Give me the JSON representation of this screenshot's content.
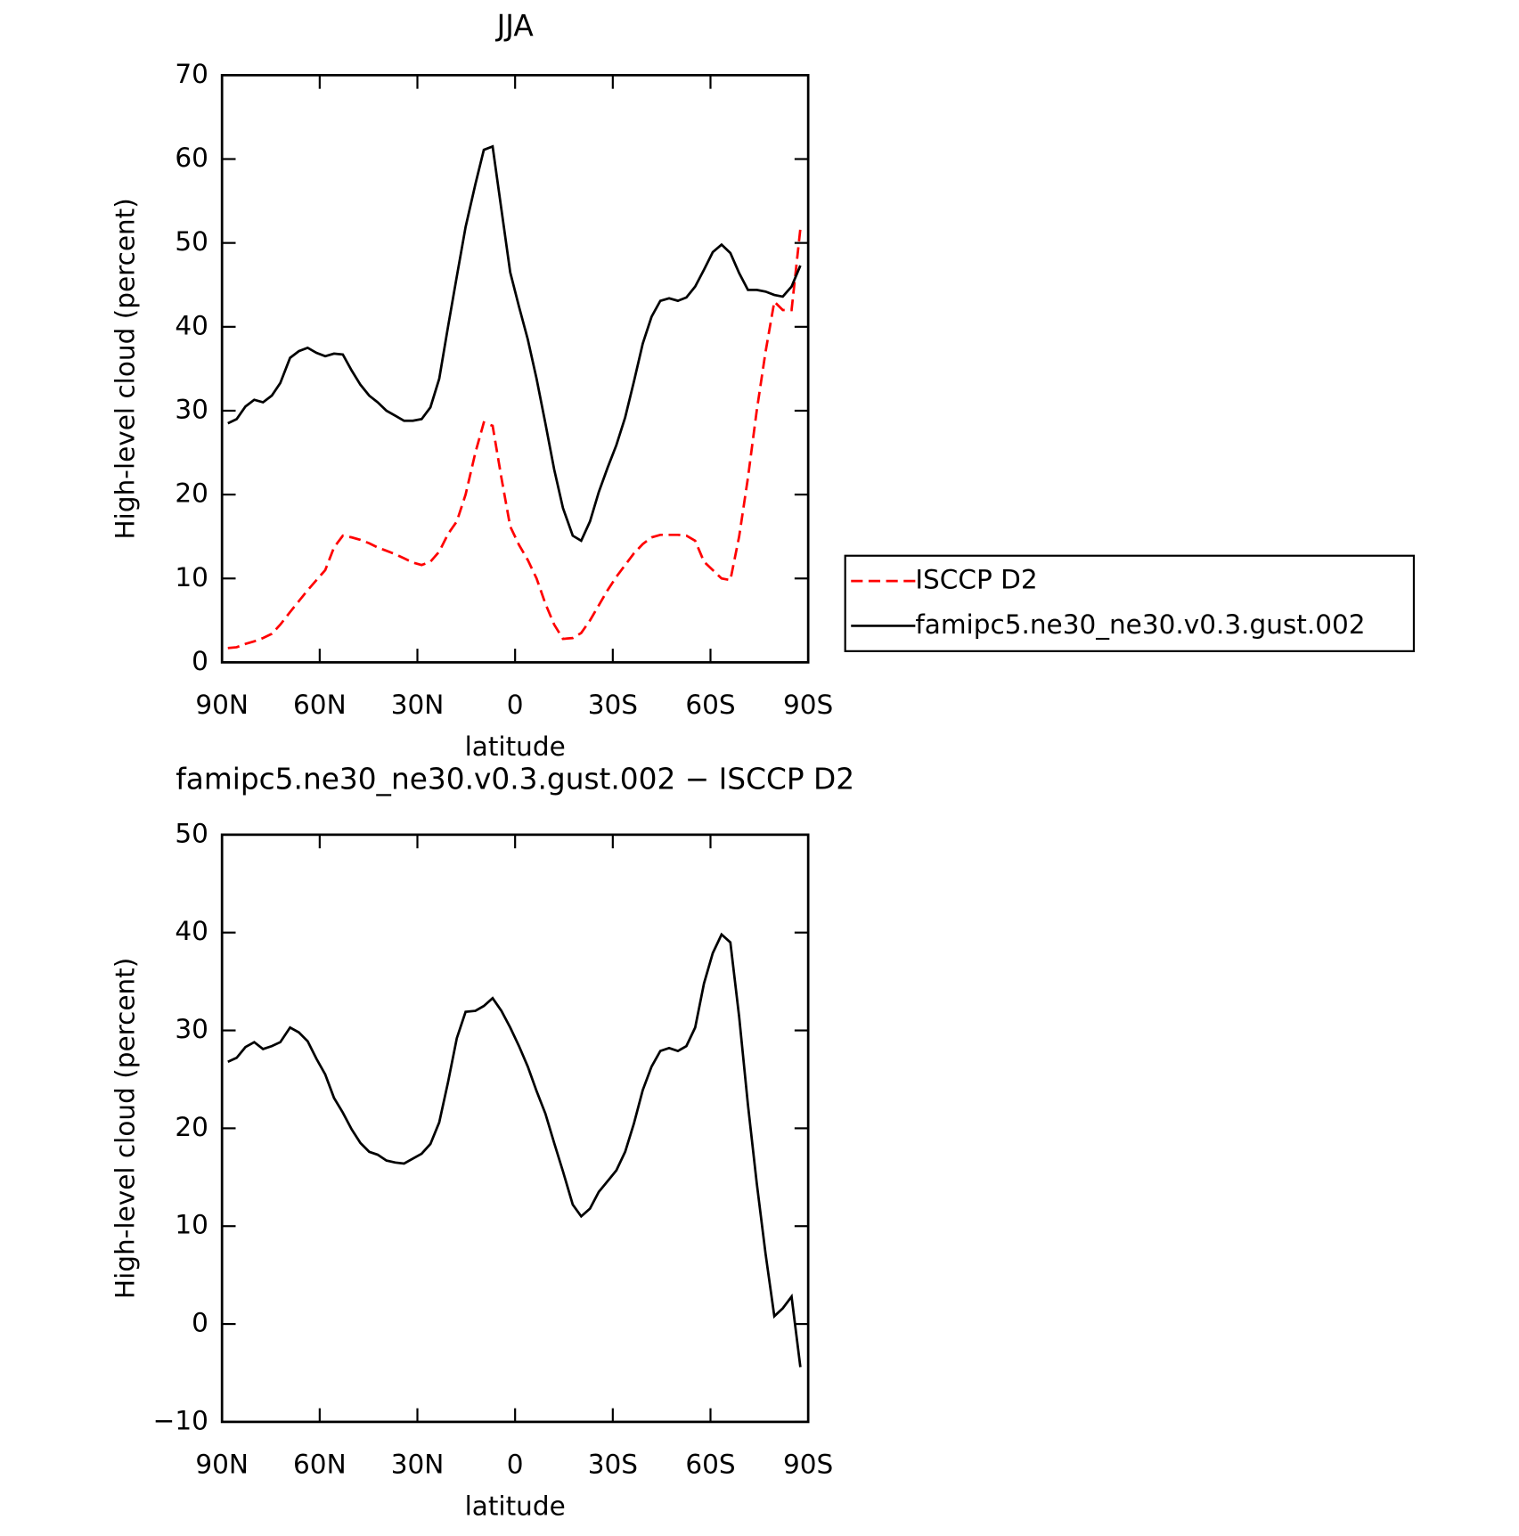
{
  "chart_data": [
    {
      "type": "line",
      "title": "JJA",
      "xlabel": "latitude",
      "ylabel": "High-level cloud (percent)",
      "x": [
        88.2,
        85.5,
        82.8,
        80.1,
        77.4,
        74.7,
        72.1,
        69.1,
        66.4,
        63.7,
        61.0,
        58.3,
        55.6,
        52.9,
        50.2,
        47.5,
        44.8,
        42.2,
        39.5,
        36.8,
        34.1,
        31.4,
        28.7,
        26.0,
        23.3,
        20.6,
        17.9,
        15.2,
        12.2,
        9.6,
        6.9,
        4.2,
        1.5,
        -1.2,
        -3.9,
        -6.6,
        -9.3,
        -12.0,
        -14.7,
        -17.7,
        -20.3,
        -23.0,
        -25.7,
        -28.4,
        -31.1,
        -33.8,
        -36.5,
        -39.2,
        -41.9,
        -44.6,
        -47.3,
        -50.0,
        -52.6,
        -55.3,
        -58.0,
        -60.7,
        -63.4,
        -66.1,
        -68.8,
        -71.5,
        -74.2,
        -76.9,
        -79.6,
        -82.2,
        -84.9,
        -87.6
      ],
      "series": [
        {
          "name": "ISCCP D2",
          "color": "#ff0000",
          "linestyle": "dashed",
          "values": [
            1.7,
            1.8,
            2.2,
            2.5,
            2.9,
            3.4,
            4.5,
            6,
            7.3,
            8.6,
            9.8,
            11,
            13.7,
            15.1,
            14.9,
            14.6,
            14.2,
            13.7,
            13.3,
            12.9,
            12.4,
            11.9,
            11.6,
            12,
            13.2,
            15.3,
            16.8,
            20,
            25,
            28.6,
            28.2,
            22,
            16.2,
            14,
            12.2,
            10,
            7,
            4.5,
            2.8,
            2.9,
            3.5,
            5,
            6.8,
            8.6,
            10.2,
            11.6,
            13,
            14.1,
            14.9,
            15.2,
            15.2,
            15.2,
            15.1,
            14.5,
            12,
            11,
            10,
            9.8,
            15,
            22,
            30,
            37,
            43,
            42,
            42,
            51.7
          ]
        },
        {
          "name": "famipc5.ne30_ne30.v0.3.gust.002",
          "color": "#000000",
          "linestyle": "solid",
          "values": [
            28.5,
            29,
            30.5,
            31.3,
            31,
            31.8,
            33.3,
            36.3,
            37.1,
            37.5,
            36.9,
            36.5,
            36.8,
            36.7,
            34.8,
            33.1,
            31.8,
            31.0,
            30.0,
            29.4,
            28.8,
            28.8,
            29.0,
            30.4,
            33.8,
            40,
            46,
            51.9,
            57,
            61.1,
            61.5,
            54,
            46.5,
            42.4,
            38.5,
            33.8,
            28.5,
            23,
            18.4,
            15.1,
            14.5,
            16.8,
            20.3,
            23.2,
            25.9,
            29.2,
            33.5,
            38,
            41.2,
            43.1,
            43.4,
            43.1,
            43.5,
            44.8,
            46.8,
            48.9,
            49.8,
            48.8,
            46.4,
            44.4,
            44.4,
            44.2,
            43.8,
            43.6,
            44.8,
            47.3
          ]
        }
      ],
      "xlim": [
        90,
        -90
      ],
      "ylim": [
        0,
        70
      ],
      "xticks": [
        {
          "value": 90,
          "label": "90N"
        },
        {
          "value": 60,
          "label": "60N"
        },
        {
          "value": 30,
          "label": "30N"
        },
        0,
        {
          "value": -30,
          "label": "30S"
        },
        {
          "value": -60,
          "label": "60S"
        },
        {
          "value": -90,
          "label": "90S"
        }
      ],
      "yticks": [
        0,
        10,
        20,
        30,
        40,
        50,
        60,
        70
      ],
      "legend": "right"
    },
    {
      "type": "line",
      "title": "famipc5.ne30_ne30.v0.3.gust.002 − ISCCP D2",
      "xlabel": "latitude",
      "ylabel": "High-level cloud (percent)",
      "x": [
        88.2,
        85.5,
        82.8,
        80.1,
        77.4,
        74.7,
        72.1,
        69.1,
        66.4,
        63.7,
        61.0,
        58.3,
        55.6,
        52.9,
        50.2,
        47.5,
        44.8,
        42.2,
        39.5,
        36.8,
        34.1,
        31.4,
        28.7,
        26.0,
        23.3,
        20.6,
        17.9,
        15.2,
        12.2,
        9.6,
        6.9,
        4.2,
        1.5,
        -1.2,
        -3.9,
        -6.6,
        -9.3,
        -12.0,
        -14.7,
        -17.7,
        -20.3,
        -23.0,
        -25.7,
        -28.4,
        -31.1,
        -33.8,
        -36.5,
        -39.2,
        -41.9,
        -44.6,
        -47.3,
        -50.0,
        -52.6,
        -55.3,
        -58.0,
        -60.7,
        -63.4,
        -66.1,
        -68.8,
        -71.5,
        -74.2,
        -76.9,
        -79.6,
        -82.2,
        -84.9,
        -87.6
      ],
      "series": [
        {
          "color": "#000000",
          "linestyle": "solid",
          "values": [
            26.8,
            27.2,
            28.3,
            28.8,
            28.1,
            28.4,
            28.8,
            30.3,
            29.8,
            28.9,
            27.1,
            25.5,
            23.1,
            21.6,
            19.9,
            18.5,
            17.6,
            17.3,
            16.7,
            16.5,
            16.4,
            16.9,
            17.4,
            18.4,
            20.6,
            24.7,
            29.2,
            31.9,
            32,
            32.5,
            33.3,
            32,
            30.3,
            28.4,
            26.3,
            23.8,
            21.5,
            18.5,
            15.6,
            12.2,
            11,
            11.8,
            13.5,
            14.6,
            15.7,
            17.6,
            20.5,
            23.9,
            26.3,
            27.9,
            28.2,
            27.9,
            28.4,
            30.3,
            34.8,
            37.9,
            39.8,
            39,
            31.4,
            22.4,
            14.4,
            7.2,
            0.8,
            1.6,
            2.8,
            -4.4
          ]
        }
      ],
      "xlim": [
        90,
        -90
      ],
      "ylim": [
        -10,
        50
      ],
      "xticks": [
        {
          "value": 90,
          "label": "90N"
        },
        {
          "value": 60,
          "label": "60N"
        },
        {
          "value": 30,
          "label": "30N"
        },
        0,
        {
          "value": -30,
          "label": "30S"
        },
        {
          "value": -60,
          "label": "60S"
        },
        {
          "value": -90,
          "label": "90S"
        }
      ],
      "yticks": [
        {
          "value": -10,
          "label": "−10"
        },
        0,
        10,
        20,
        30,
        40,
        50
      ]
    }
  ]
}
